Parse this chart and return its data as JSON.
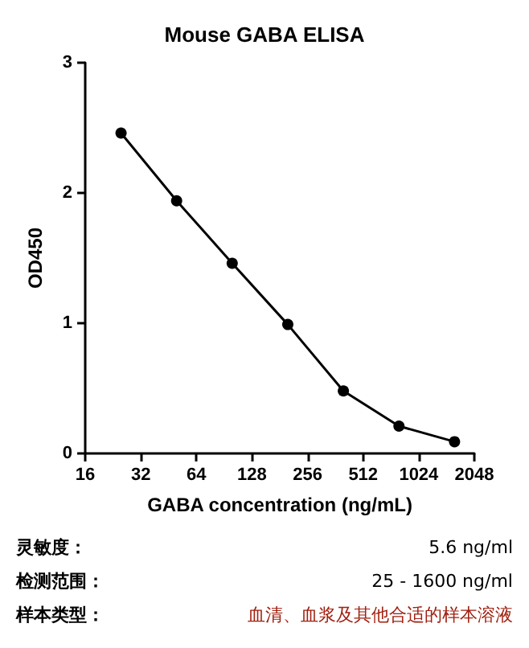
{
  "chart_data": {
    "type": "line",
    "title": "Mouse GABA ELISA",
    "xlabel": "GABA concentration (ng/mL)",
    "ylabel": "OD450",
    "x": [
      25,
      50,
      100,
      200,
      400,
      800,
      1600
    ],
    "values": [
      2.46,
      1.94,
      1.46,
      0.99,
      0.48,
      0.21,
      0.09
    ],
    "color": "#000000",
    "marker": "circle",
    "line_style": "solid",
    "log": "x",
    "grid": false,
    "xlim": [
      16,
      2048
    ],
    "xticks": [
      16,
      32,
      64,
      128,
      256,
      512,
      1024,
      2048
    ],
    "ylim": [
      0,
      3
    ],
    "yticks": [
      0,
      1,
      2,
      3
    ],
    "annotations": [
      "灵敏度：",
      "5.6 ng/ml",
      "检测范围：",
      "25 - 1600 ng/ml",
      "样本类型：",
      "血清、血浆及其他合适的样本溶液"
    ]
  }
}
